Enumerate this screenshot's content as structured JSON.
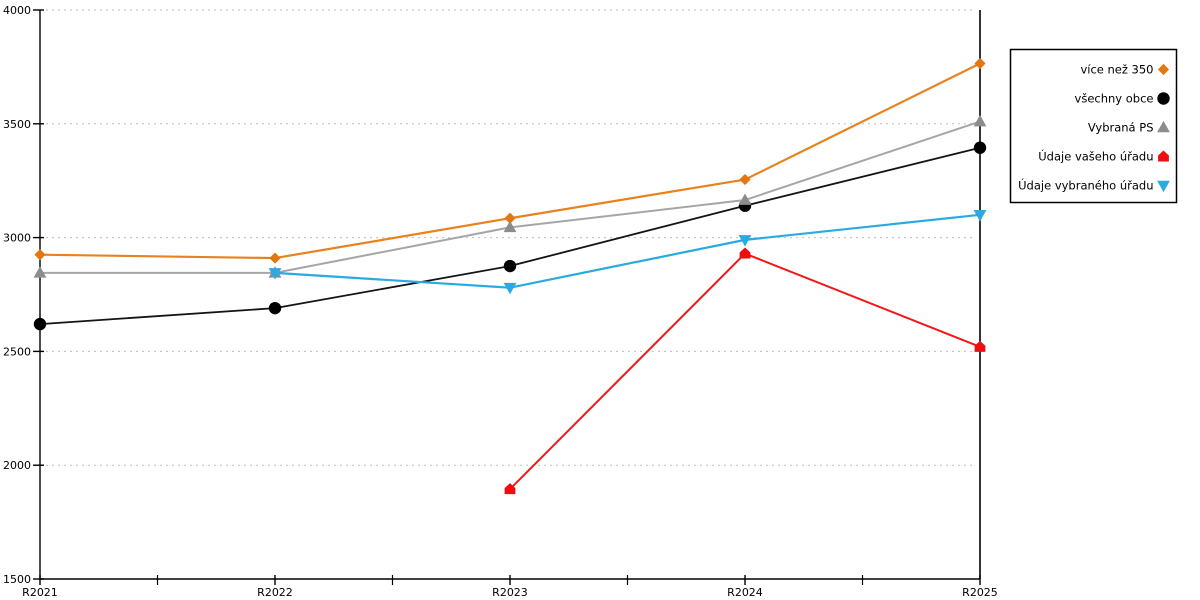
{
  "chart_data": {
    "type": "line",
    "x": [
      "R2021",
      "R2022",
      "R2023",
      "R2024",
      "R2025"
    ],
    "series": [
      {
        "name": "více než 350",
        "marker": "diamond",
        "line_color": "#e8821e",
        "marker_color": "#e2760f",
        "line_width": 2.2,
        "values": [
          2925,
          2910,
          3085,
          3255,
          3765
        ]
      },
      {
        "name": "všechny obce",
        "marker": "circle",
        "line_color": "#141414",
        "marker_color": "#000000",
        "line_width": 1.8,
        "values": [
          2620,
          2690,
          2875,
          3140,
          3395
        ]
      },
      {
        "name": "Vybraná PS",
        "marker": "triangle-up",
        "line_color": "#a6a6a6",
        "marker_color": "#8c8c8c",
        "line_width": 2.0,
        "values": [
          2845,
          2845,
          3045,
          3165,
          3510
        ]
      },
      {
        "name": "Údaje vašeho úřadu",
        "marker": "house",
        "line_color": "#f51717",
        "marker_color": "#ee0e0e",
        "line_width": 2.0,
        "values": [
          null,
          null,
          1895,
          2930,
          2520
        ]
      },
      {
        "name": "Údaje vybraného úřadu",
        "marker": "triangle-down",
        "line_color": "#29abe2",
        "marker_color": "#29abe2",
        "line_width": 2.2,
        "values": [
          null,
          2845,
          2780,
          2990,
          3100
        ]
      }
    ],
    "title": "",
    "xlabel": "",
    "ylabel": "",
    "ylim": [
      1500,
      4000
    ],
    "yticks": [
      1500,
      2000,
      2500,
      3000,
      3500,
      4000
    ],
    "grid": "horizontal-dashed",
    "grid_color": "#bfbfbf",
    "axis_color": "#000000",
    "legend_position": "right-outside",
    "legend_border_color": "#000000",
    "legend_background": "#ffffff"
  }
}
